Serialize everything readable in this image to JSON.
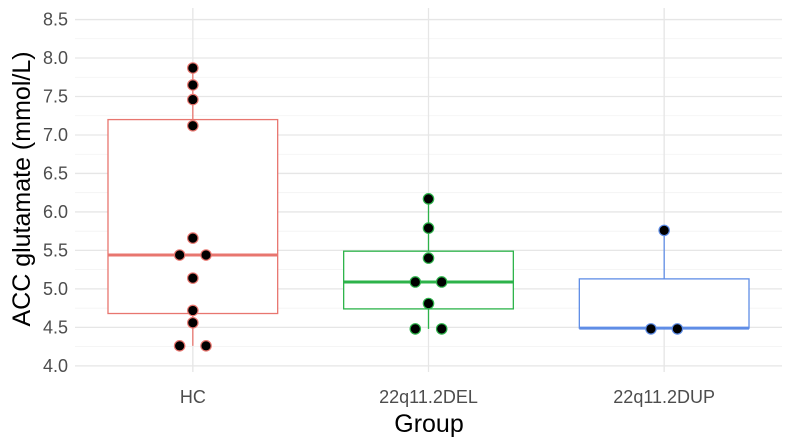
{
  "chart_data": {
    "type": "boxplot",
    "title": "",
    "xlabel": "Group",
    "ylabel": "ACC glutamate (mmol/L)",
    "ylim": [
      3.92,
      8.65
    ],
    "yticks": [
      "4.0",
      "4.5",
      "5.0",
      "5.5",
      "6.0",
      "6.5",
      "7.0",
      "7.5",
      "8.0",
      "8.5"
    ],
    "grid": true,
    "legend": "none",
    "categories": [
      "HC",
      "22q11.2DEL",
      "22q11.2DUP"
    ],
    "groups": [
      {
        "category": "HC",
        "color": "#e8766f",
        "box": {
          "min": 4.26,
          "q1": 4.68,
          "median": 5.44,
          "q3": 7.2,
          "max": 7.87
        },
        "points": [
          {
            "x": 0,
            "y": 7.87
          },
          {
            "x": 0,
            "y": 7.65
          },
          {
            "x": 0,
            "y": 7.46
          },
          {
            "x": 0,
            "y": 7.12
          },
          {
            "x": 0,
            "y": 5.66
          },
          {
            "x": -0.05,
            "y": 5.44
          },
          {
            "x": 0.05,
            "y": 5.44
          },
          {
            "x": 0,
            "y": 5.14
          },
          {
            "x": 0,
            "y": 4.72
          },
          {
            "x": 0,
            "y": 4.56
          },
          {
            "x": -0.05,
            "y": 4.26
          },
          {
            "x": 0.05,
            "y": 4.26
          }
        ]
      },
      {
        "category": "22q11.2DEL",
        "color": "#2db34a",
        "box": {
          "min": 4.48,
          "q1": 4.74,
          "median": 5.09,
          "q3": 5.49,
          "max": 6.17
        },
        "points": [
          {
            "x": 0,
            "y": 6.17
          },
          {
            "x": 0,
            "y": 5.79
          },
          {
            "x": 0,
            "y": 5.4
          },
          {
            "x": -0.05,
            "y": 5.09
          },
          {
            "x": 0.05,
            "y": 5.09
          },
          {
            "x": 0,
            "y": 4.81
          },
          {
            "x": -0.05,
            "y": 4.48
          },
          {
            "x": 0.05,
            "y": 4.48
          }
        ]
      },
      {
        "category": "22q11.2DUP",
        "color": "#5f8de6",
        "box": {
          "min": 4.48,
          "q1": 4.49,
          "median": 4.49,
          "q3": 5.13,
          "max": 5.76
        },
        "points": [
          {
            "x": 0,
            "y": 5.76
          },
          {
            "x": -0.05,
            "y": 4.48
          },
          {
            "x": 0.05,
            "y": 4.48
          }
        ]
      }
    ]
  }
}
